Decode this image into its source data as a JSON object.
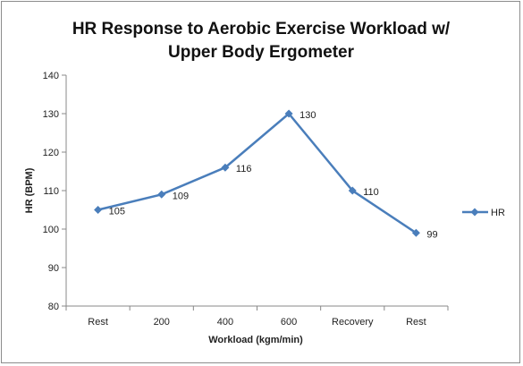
{
  "chart_data": {
    "type": "line",
    "title_line1": "HR Response  to Aerobic Exercise Workload w/",
    "title_line2": "Upper Body Ergometer",
    "xlabel": "Workload (kgm/min)",
    "ylabel": "HR (BPM)",
    "categories": [
      "Rest",
      "200",
      "400",
      "600",
      "Recovery",
      "Rest"
    ],
    "series": [
      {
        "name": "HR",
        "values": [
          105,
          109,
          116,
          130,
          110,
          99
        ],
        "color": "#4a7ebb"
      }
    ],
    "ylim": [
      80,
      140
    ],
    "yticks": [
      "80",
      "90",
      "100",
      "110",
      "120",
      "130",
      "140"
    ],
    "data_labels": [
      "105",
      "109",
      "116",
      "130",
      "110",
      "99"
    ],
    "grid": false,
    "legend": "right"
  }
}
